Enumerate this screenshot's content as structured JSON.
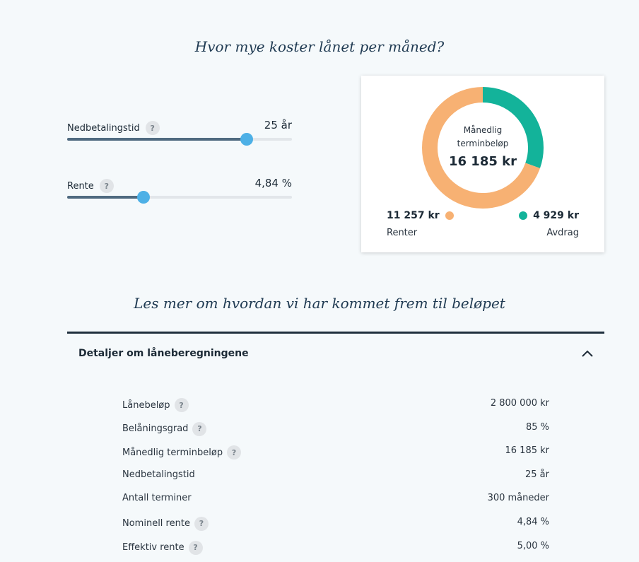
{
  "heading": "Hvor mye koster lånet per måned?",
  "sliders": [
    {
      "label": "Nedbetalingstid",
      "value": "25 år",
      "fraction": 0.8
    },
    {
      "label": "Rente",
      "value": "4,84 %",
      "fraction": 0.34
    }
  ],
  "help_icon_glyph": "?",
  "card": {
    "center_label": "Månedlig terminbeløp",
    "center_amount": "16 185 kr",
    "interest_amount": "11 257 kr",
    "interest_label": "Renter",
    "principal_amount": "4 929 kr",
    "principal_label": "Avdrag",
    "interest_color": "#f7b173",
    "principal_color": "#13b39a"
  },
  "chart_data": {
    "type": "pie",
    "categories": [
      "Renter",
      "Avdrag"
    ],
    "values": [
      11257,
      4929
    ],
    "colors": [
      "#f7b173",
      "#13b39a"
    ]
  },
  "subheading": "Les mer om hvordan vi har kommet frem til beløpet",
  "accordion": {
    "title": "Detaljer om låneberegningene",
    "expanded": true,
    "icon": "chevron-up-icon"
  },
  "details": [
    {
      "label": "Lånebeløp",
      "value": "2 800 000 kr",
      "help": true
    },
    {
      "label": "Belåningsgrad",
      "value": "85 %",
      "help": true
    },
    {
      "label": "Månedlig terminbeløp",
      "value": "16 185 kr",
      "help": true
    },
    {
      "label": "Nedbetalingstid",
      "value": "25 år",
      "help": false
    },
    {
      "label": "Antall terminer",
      "value": "300 måneder",
      "help": false
    },
    {
      "label": "Nominell rente",
      "value": "4,84 %",
      "help": true
    },
    {
      "label": "Effektiv rente",
      "value": "5,00 %",
      "help": true
    }
  ]
}
